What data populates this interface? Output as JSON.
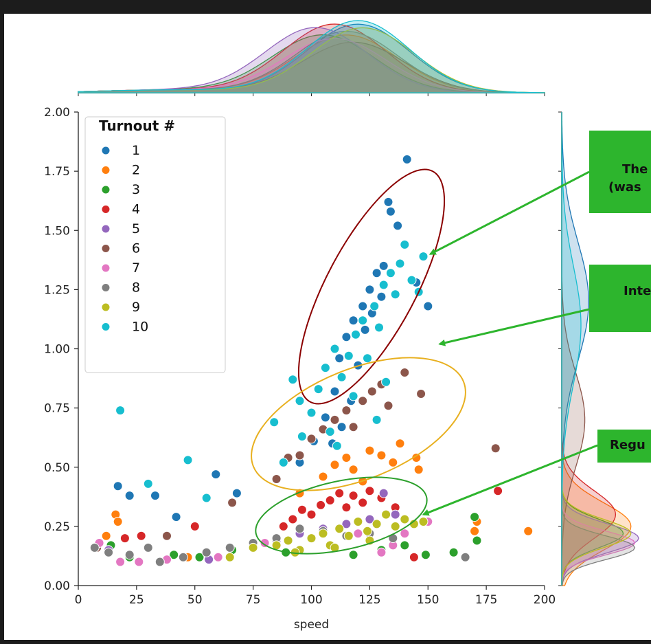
{
  "chart_data": {
    "type": "scatter",
    "xlabel": "speed",
    "ylabel": "",
    "xlim": [
      0,
      200
    ],
    "ylim": [
      0,
      2.0
    ],
    "x_ticks": [
      "0",
      "25",
      "50",
      "75",
      "100",
      "125",
      "150",
      "175",
      "200"
    ],
    "y_ticks": [
      "0.00",
      "0.25",
      "0.50",
      "0.75",
      "1.00",
      "1.25",
      "1.50",
      "1.75",
      "2.00"
    ],
    "legend": {
      "title": "Turnout  #",
      "placement": "top-left",
      "entries": [
        {
          "label": "1",
          "color": "#1f77b4"
        },
        {
          "label": "2",
          "color": "#ff7f0e"
        },
        {
          "label": "3",
          "color": "#2ca02c"
        },
        {
          "label": "4",
          "color": "#d62728"
        },
        {
          "label": "5",
          "color": "#9467bd"
        },
        {
          "label": "6",
          "color": "#8c564b"
        },
        {
          "label": "7",
          "color": "#e377c2"
        },
        {
          "label": "8",
          "color": "#7f7f7f"
        },
        {
          "label": "9",
          "color": "#bcbd22"
        },
        {
          "label": "10",
          "color": "#17becf"
        }
      ]
    },
    "series": [
      {
        "name": "1",
        "color": "#1f77b4",
        "points": [
          [
            17,
            0.42
          ],
          [
            22,
            0.38
          ],
          [
            33,
            0.38
          ],
          [
            42,
            0.29
          ],
          [
            59,
            0.47
          ],
          [
            68,
            0.39
          ],
          [
            95,
            0.52
          ],
          [
            101,
            0.61
          ],
          [
            106,
            0.71
          ],
          [
            110,
            0.82
          ],
          [
            112,
            0.96
          ],
          [
            115,
            1.05
          ],
          [
            118,
            1.12
          ],
          [
            120,
            0.93
          ],
          [
            122,
            1.18
          ],
          [
            125,
            1.25
          ],
          [
            128,
            1.32
          ],
          [
            131,
            1.35
          ],
          [
            133,
            1.62
          ],
          [
            134,
            1.58
          ],
          [
            137,
            1.52
          ],
          [
            141,
            1.8
          ],
          [
            145,
            1.28
          ],
          [
            150,
            1.18
          ],
          [
            109,
            0.6
          ],
          [
            113,
            0.67
          ],
          [
            117,
            0.78
          ],
          [
            123,
            1.08
          ],
          [
            126,
            1.15
          ],
          [
            130,
            1.22
          ]
        ]
      },
      {
        "name": "2",
        "color": "#ff7f0e",
        "points": [
          [
            12,
            0.21
          ],
          [
            16,
            0.3
          ],
          [
            17,
            0.27
          ],
          [
            47,
            0.12
          ],
          [
            95,
            0.39
          ],
          [
            105,
            0.46
          ],
          [
            110,
            0.51
          ],
          [
            115,
            0.54
          ],
          [
            118,
            0.49
          ],
          [
            122,
            0.44
          ],
          [
            125,
            0.57
          ],
          [
            130,
            0.55
          ],
          [
            135,
            0.52
          ],
          [
            138,
            0.6
          ],
          [
            145,
            0.54
          ],
          [
            146,
            0.49
          ],
          [
            170,
            0.23
          ],
          [
            171,
            0.27
          ],
          [
            193,
            0.23
          ]
        ]
      },
      {
        "name": "3",
        "color": "#2ca02c",
        "points": [
          [
            14,
            0.17
          ],
          [
            22,
            0.12
          ],
          [
            41,
            0.13
          ],
          [
            52,
            0.12
          ],
          [
            66,
            0.15
          ],
          [
            89,
            0.14
          ],
          [
            118,
            0.13
          ],
          [
            130,
            0.15
          ],
          [
            140,
            0.17
          ],
          [
            149,
            0.13
          ],
          [
            161,
            0.14
          ],
          [
            170,
            0.29
          ],
          [
            171,
            0.19
          ]
        ]
      },
      {
        "name": "4",
        "color": "#d62728",
        "points": [
          [
            20,
            0.2
          ],
          [
            27,
            0.21
          ],
          [
            50,
            0.25
          ],
          [
            88,
            0.25
          ],
          [
            92,
            0.28
          ],
          [
            96,
            0.32
          ],
          [
            100,
            0.3
          ],
          [
            104,
            0.34
          ],
          [
            108,
            0.36
          ],
          [
            112,
            0.39
          ],
          [
            115,
            0.33
          ],
          [
            118,
            0.38
          ],
          [
            122,
            0.35
          ],
          [
            125,
            0.4
          ],
          [
            130,
            0.37
          ],
          [
            136,
            0.33
          ],
          [
            144,
            0.12
          ],
          [
            180,
            0.4
          ]
        ]
      },
      {
        "name": "5",
        "color": "#9467bd",
        "points": [
          [
            13,
            0.15
          ],
          [
            56,
            0.11
          ],
          [
            75,
            0.16
          ],
          [
            85,
            0.19
          ],
          [
            95,
            0.22
          ],
          [
            105,
            0.24
          ],
          [
            115,
            0.26
          ],
          [
            125,
            0.28
          ],
          [
            131,
            0.39
          ],
          [
            136,
            0.3
          ]
        ]
      },
      {
        "name": "6",
        "color": "#8c564b",
        "points": [
          [
            8,
            0.16
          ],
          [
            38,
            0.21
          ],
          [
            66,
            0.35
          ],
          [
            85,
            0.45
          ],
          [
            90,
            0.54
          ],
          [
            95,
            0.55
          ],
          [
            100,
            0.62
          ],
          [
            105,
            0.66
          ],
          [
            110,
            0.7
          ],
          [
            115,
            0.74
          ],
          [
            118,
            0.67
          ],
          [
            122,
            0.78
          ],
          [
            126,
            0.82
          ],
          [
            130,
            0.85
          ],
          [
            133,
            0.76
          ],
          [
            140,
            0.9
          ],
          [
            147,
            0.81
          ],
          [
            179,
            0.58
          ]
        ]
      },
      {
        "name": "7",
        "color": "#e377c2",
        "points": [
          [
            9,
            0.18
          ],
          [
            18,
            0.1
          ],
          [
            26,
            0.1
          ],
          [
            38,
            0.11
          ],
          [
            60,
            0.12
          ],
          [
            80,
            0.18
          ],
          [
            100,
            0.2
          ],
          [
            120,
            0.22
          ],
          [
            130,
            0.14
          ],
          [
            140,
            0.22
          ],
          [
            150,
            0.27
          ],
          [
            135,
            0.17
          ]
        ]
      },
      {
        "name": "8",
        "color": "#7f7f7f",
        "points": [
          [
            7,
            0.16
          ],
          [
            13,
            0.14
          ],
          [
            22,
            0.13
          ],
          [
            30,
            0.16
          ],
          [
            35,
            0.1
          ],
          [
            45,
            0.12
          ],
          [
            55,
            0.14
          ],
          [
            65,
            0.16
          ],
          [
            75,
            0.18
          ],
          [
            85,
            0.2
          ],
          [
            95,
            0.24
          ],
          [
            105,
            0.23
          ],
          [
            115,
            0.21
          ],
          [
            125,
            0.22
          ],
          [
            135,
            0.2
          ],
          [
            166,
            0.12
          ]
        ]
      },
      {
        "name": "9",
        "color": "#bcbd22",
        "points": [
          [
            65,
            0.12
          ],
          [
            75,
            0.16
          ],
          [
            85,
            0.17
          ],
          [
            90,
            0.19
          ],
          [
            95,
            0.15
          ],
          [
            100,
            0.2
          ],
          [
            105,
            0.22
          ],
          [
            108,
            0.17
          ],
          [
            112,
            0.24
          ],
          [
            116,
            0.21
          ],
          [
            120,
            0.27
          ],
          [
            124,
            0.23
          ],
          [
            128,
            0.26
          ],
          [
            132,
            0.3
          ],
          [
            136,
            0.25
          ],
          [
            140,
            0.28
          ],
          [
            144,
            0.26
          ],
          [
            148,
            0.27
          ],
          [
            93,
            0.14
          ],
          [
            110,
            0.16
          ],
          [
            125,
            0.19
          ]
        ]
      },
      {
        "name": "10",
        "color": "#17becf",
        "points": [
          [
            18,
            0.74
          ],
          [
            30,
            0.43
          ],
          [
            47,
            0.53
          ],
          [
            55,
            0.37
          ],
          [
            84,
            0.69
          ],
          [
            88,
            0.52
          ],
          [
            92,
            0.87
          ],
          [
            95,
            0.78
          ],
          [
            100,
            0.73
          ],
          [
            103,
            0.83
          ],
          [
            106,
            0.92
          ],
          [
            108,
            0.65
          ],
          [
            110,
            1.0
          ],
          [
            113,
            0.88
          ],
          [
            116,
            0.97
          ],
          [
            119,
            1.06
          ],
          [
            122,
            1.12
          ],
          [
            124,
            0.96
          ],
          [
            127,
            1.18
          ],
          [
            129,
            1.09
          ],
          [
            131,
            1.27
          ],
          [
            134,
            1.32
          ],
          [
            136,
            1.23
          ],
          [
            138,
            1.36
          ],
          [
            140,
            1.44
          ],
          [
            143,
            1.29
          ],
          [
            146,
            1.24
          ],
          [
            148,
            1.39
          ],
          [
            128,
            0.7
          ],
          [
            132,
            0.86
          ],
          [
            111,
            0.59
          ],
          [
            96,
            0.63
          ],
          [
            118,
            0.8
          ]
        ]
      }
    ],
    "annotations": [
      {
        "label": "The\n(was",
        "color": "#2db52d",
        "ellipse_color": "#8b0000",
        "arrow_to": [
          151,
          1.4
        ]
      },
      {
        "label": "Inte",
        "color": "#2db52d",
        "ellipse_color": "#e8b020",
        "arrow_to": [
          155,
          1.02
        ]
      },
      {
        "label": "Regu",
        "color": "#2db52d",
        "ellipse_color": "#2ca02c",
        "arrow_to": [
          148,
          0.3
        ]
      }
    ],
    "grid": false
  }
}
